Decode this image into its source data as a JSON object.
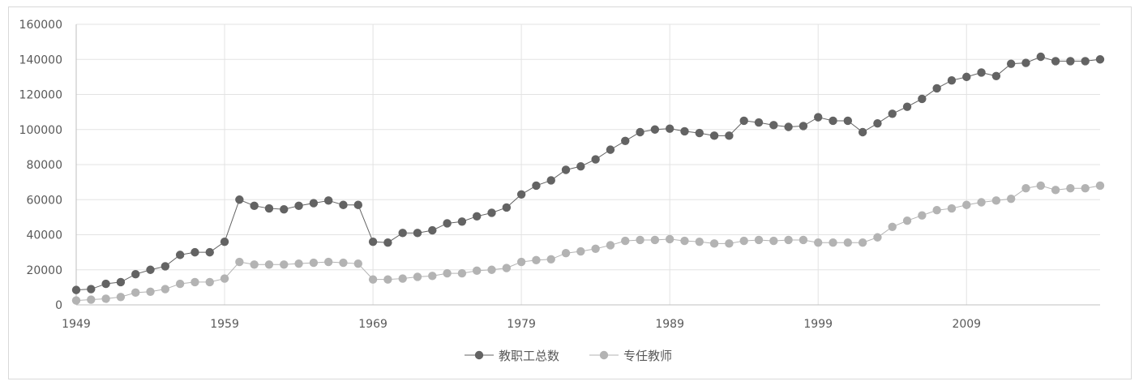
{
  "chart_data": {
    "type": "line",
    "title": "",
    "xlabel": "",
    "ylabel": "",
    "x_tick_labels": [
      "1949",
      "1959",
      "1969",
      "1979",
      "1989",
      "1999",
      "2009"
    ],
    "y_tick_labels": [
      "0",
      "20000",
      "40000",
      "60000",
      "80000",
      "100000",
      "120000",
      "140000",
      "160000"
    ],
    "xlim": [
      1949,
      2018
    ],
    "ylim": [
      0,
      160000
    ],
    "grid": true,
    "legend_position": "bottom",
    "x": [
      1949,
      1950,
      1951,
      1952,
      1953,
      1954,
      1955,
      1956,
      1957,
      1958,
      1959,
      1960,
      1961,
      1962,
      1963,
      1964,
      1965,
      1966,
      1967,
      1968,
      1969,
      1970,
      1971,
      1972,
      1973,
      1974,
      1975,
      1976,
      1977,
      1978,
      1979,
      1980,
      1981,
      1982,
      1983,
      1984,
      1985,
      1986,
      1987,
      1988,
      1989,
      1990,
      1991,
      1992,
      1993,
      1994,
      1995,
      1996,
      1997,
      1998,
      1999,
      2000,
      2001,
      2002,
      2003,
      2004,
      2005,
      2006,
      2007,
      2008,
      2009,
      2010,
      2011,
      2012,
      2013,
      2014,
      2015,
      2016,
      2017,
      2018
    ],
    "series": [
      {
        "name": "教职工总数",
        "color": "#636363",
        "values": [
          8500,
          9000,
          12000,
          13000,
          17500,
          20000,
          22000,
          28500,
          30000,
          30000,
          36000,
          60000,
          56500,
          55000,
          54500,
          56500,
          58000,
          59500,
          57000,
          57000,
          36000,
          35500,
          41000,
          41000,
          42500,
          46500,
          47500,
          50500,
          52500,
          55500,
          63000,
          68000,
          71000,
          77000,
          79000,
          83000,
          88500,
          93500,
          98500,
          100000,
          100500,
          99000,
          98000,
          96500,
          96500,
          105000,
          104000,
          102500,
          101500,
          102000,
          107000,
          105000,
          105000,
          98500,
          103500,
          109000,
          113000,
          117500,
          123500,
          128000,
          130000,
          132500,
          130500,
          137500,
          138000,
          141500,
          139000,
          139000,
          139000,
          140000
        ]
      },
      {
        "name": "专任教师",
        "color": "#b3b3b3",
        "values": [
          2500,
          3000,
          3500,
          4500,
          7000,
          7500,
          9000,
          12000,
          13000,
          13000,
          15000,
          24500,
          23000,
          23000,
          23000,
          23500,
          24000,
          24500,
          24000,
          23500,
          14500,
          14500,
          15000,
          16000,
          16500,
          18000,
          18000,
          19500,
          20000,
          21000,
          24500,
          25500,
          26000,
          29500,
          30500,
          32000,
          34000,
          36500,
          37000,
          37000,
          37500,
          36500,
          36000,
          35000,
          35000,
          36500,
          37000,
          36500,
          37000,
          37000,
          35500,
          35500,
          35500,
          35500,
          38500,
          44500,
          48000,
          51000,
          54000,
          55000,
          57000,
          58500,
          59500,
          60500,
          66500,
          68000,
          65500,
          66500,
          66500,
          68000
        ]
      }
    ]
  }
}
